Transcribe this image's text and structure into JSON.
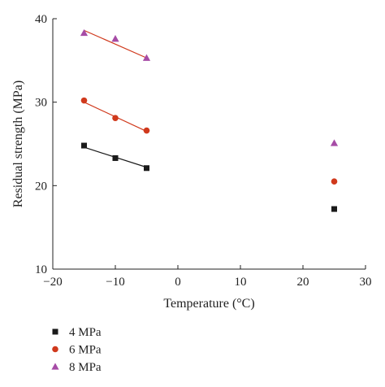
{
  "chart_data": {
    "type": "scatter",
    "xlabel": "Temperature (°C)",
    "ylabel": "Residual strength (MPa)",
    "xlim": [
      -20,
      30
    ],
    "ylim": [
      10,
      40
    ],
    "xticks": [
      "−20",
      "−10",
      "0",
      "10",
      "20",
      "30"
    ],
    "yticks": [
      "10",
      "20",
      "30",
      "40"
    ],
    "xtick_values": [
      -20,
      -10,
      0,
      10,
      20,
      30
    ],
    "ytick_values": [
      10,
      20,
      30,
      40
    ],
    "grid": false,
    "legend_position": "bottom-left",
    "series": [
      {
        "name": "4 MPa",
        "marker": "square",
        "color": "#1a1a1a",
        "line_color": "#1a1a1a",
        "x": [
          -15,
          -10,
          -5,
          25
        ],
        "y": [
          24.8,
          23.3,
          22.1,
          17.2
        ],
        "fit_x": [
          -15,
          -5
        ],
        "fit_y": [
          24.6,
          22.2
        ]
      },
      {
        "name": "6 MPa",
        "marker": "circle",
        "color": "#d0391c",
        "line_color": "#d0391c",
        "x": [
          -15,
          -10,
          -5,
          25
        ],
        "y": [
          30.2,
          28.1,
          26.6,
          20.5
        ],
        "fit_x": [
          -15,
          -5
        ],
        "fit_y": [
          30.0,
          26.5
        ]
      },
      {
        "name": "8 MPa",
        "marker": "triangle",
        "color": "#a64ca6",
        "line_color": "#d0391c",
        "x": [
          -15,
          -10,
          -5,
          25
        ],
        "y": [
          38.3,
          37.6,
          35.3,
          25.1
        ],
        "fit_x": [
          -15,
          -5
        ],
        "fit_y": [
          38.6,
          35.3
        ]
      }
    ]
  }
}
